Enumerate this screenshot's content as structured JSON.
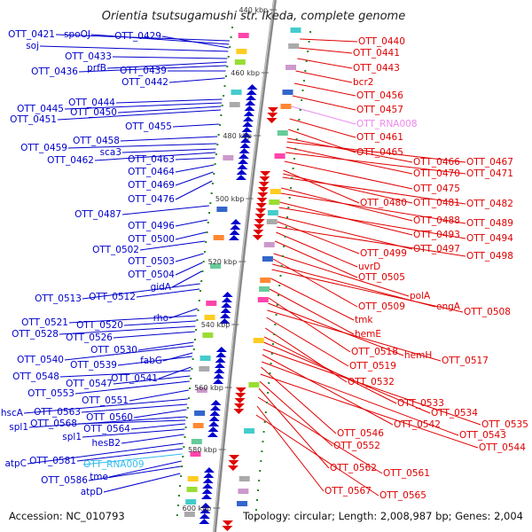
{
  "title": "Orientia tsutsugamushi str. Ikeda, complete genome",
  "accession": "Accession: NC_010793",
  "summary": "Topology: circular; Length: 2,008,987 bp; Genes: 2,004",
  "colors": {
    "forward": "#0000cc",
    "reverse": "#e00000",
    "rna": "#33bbee",
    "rna_reverse": "#ee88ee"
  },
  "ticks": [
    "440 kbp",
    "460 kbp",
    "480 kbp",
    "500 kbp",
    "520 kbp",
    "540 kbp",
    "560 kbp",
    "580 kbp",
    "600 kbp"
  ],
  "left_labels": [
    "OTT_0421",
    "spoOJ",
    "OTT_0429",
    "soj",
    "OTT_0433",
    "prfB",
    "OTT_0436",
    "OTT_0439",
    "OTT_0442",
    "OTT_0444",
    "OTT_0445",
    "OTT_0450",
    "OTT_0451",
    "OTT_0455",
    "OTT_0458",
    "OTT_0459",
    "sca3",
    "OTT_0462",
    "OTT_0463",
    "OTT_0464",
    "OTT_0469",
    "OTT_0476",
    "OTT_0487",
    "OTT_0496",
    "OTT_0500",
    "OTT_0502",
    "OTT_0503",
    "OTT_0504",
    "gidA",
    "OTT_0513",
    "OTT_0512",
    "rho",
    "OTT_0521",
    "OTT_0520",
    "OTT_0528",
    "OTT_0526",
    "OTT_0530",
    "OTT_0540",
    "fabG",
    "OTT_0539",
    "OTT_0541",
    "OTT_0548",
    "OTT_0547",
    "OTT_0553",
    "OTT_0551",
    "hscA",
    "OTT_0563",
    "OTT_0560",
    "spl1",
    "OTT_0568",
    "OTT_0564",
    "spl1",
    "hesB2",
    "atpC",
    "OTT_0581",
    "OTT_RNA009",
    "tme",
    "OTT_0586",
    "atpD"
  ],
  "right_labels": [
    "OTT_0440",
    "OTT_0441",
    "OTT_0443",
    "bcr2",
    "OTT_0456",
    "OTT_0457",
    "OTT_RNA008",
    "OTT_0461",
    "OTT_0465",
    "OTT_0466",
    "OTT_0467",
    "OTT_0470",
    "OTT_0471",
    "OTT_0475",
    "OTT_0480",
    "OTT_0481",
    "OTT_0482",
    "OTT_0488",
    "OTT_0489",
    "OTT_0493",
    "OTT_0494",
    "OTT_0497",
    "OTT_0499",
    "OTT_0498",
    "uvrD",
    "OTT_0505",
    "polA",
    "OTT_0509",
    "engA",
    "OTT_0508",
    "tmk",
    "hemE",
    "OTT_0518",
    "hemH",
    "OTT_0517",
    "OTT_0519",
    "OTT_0532",
    "OTT_0533",
    "OTT_0534",
    "OTT_0535",
    "OTT_0542",
    "OTT_0543",
    "OTT_0546",
    "OTT_0544",
    "OTT_0552",
    "OTT_0562",
    "OTT_0561",
    "OTT_0567",
    "OTT_0565"
  ]
}
